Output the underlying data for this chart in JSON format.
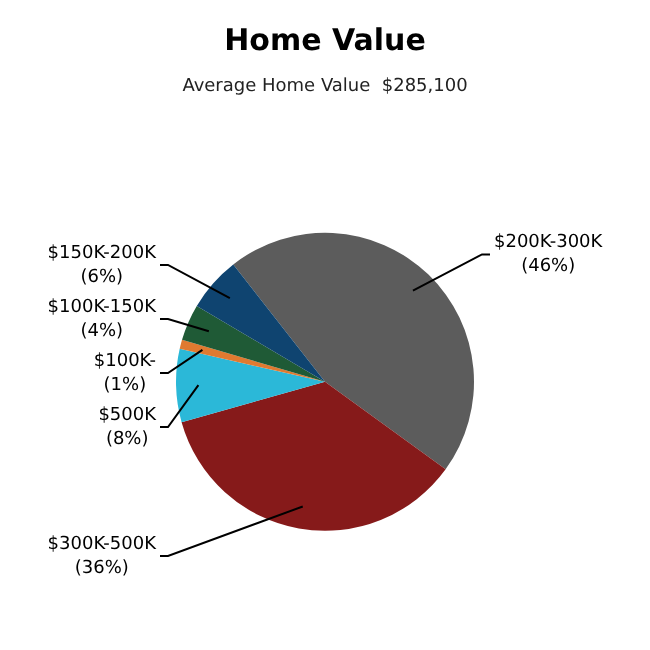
{
  "chart_data": {
    "type": "pie",
    "title": "Home Value",
    "subtitle": "Average Home Value  $285,100",
    "categories": [
      "$200K-300K",
      "$300K-500K",
      "$500K",
      "$100K-",
      "$100K-150K",
      "$150K-200K"
    ],
    "values": [
      46,
      36,
      8,
      1,
      4,
      6
    ],
    "value_labels": [
      "(46%)",
      "(36%)",
      "(8%)",
      "(1%)",
      "(4%)",
      "(6%)"
    ],
    "colors": [
      "#5c5c5c",
      "#861a1a",
      "#2bb8d8",
      "#e07a30",
      "#1f5a36",
      "#0f4470"
    ],
    "legend": false
  }
}
